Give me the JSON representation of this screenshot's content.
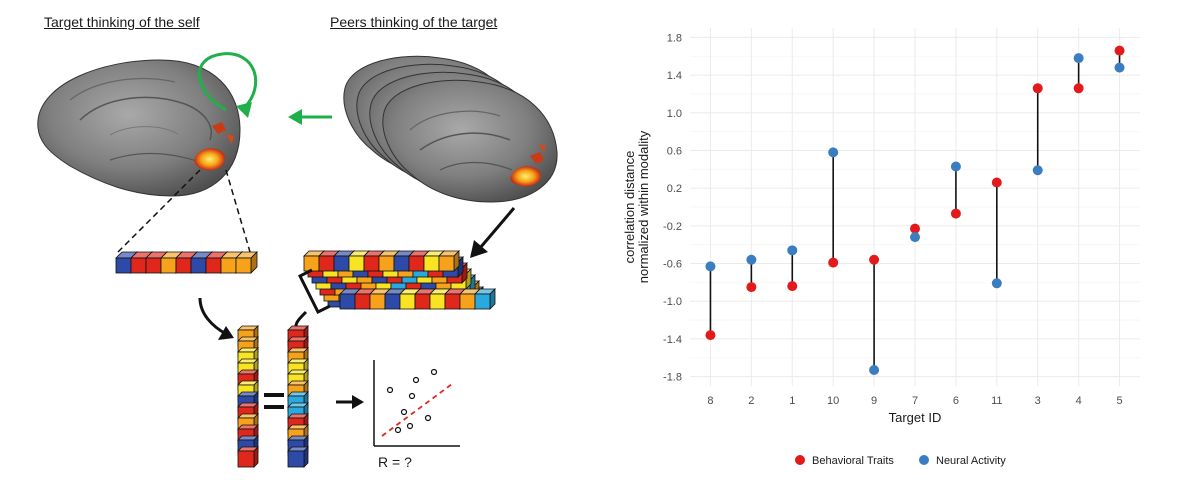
{
  "schematic": {
    "title_left": "Target thinking of the self",
    "title_right": "Peers thinking of the target",
    "r_label": "R = ?",
    "palette": [
      "#e0271b",
      "#f6a21b",
      "#f9e424",
      "#2d4aa8",
      "#2aa9df"
    ]
  },
  "chart_data": {
    "type": "dumbbell",
    "title": "",
    "xlabel": "Target ID",
    "ylabel_lines": [
      "correlation distance",
      "normalized within modality"
    ],
    "ylim": [
      -1.9,
      1.9
    ],
    "yticks": [
      1.8,
      1.4,
      1.0,
      0.6,
      0.2,
      -0.2,
      -0.6,
      -1.0,
      -1.4,
      -1.8
    ],
    "ytick_labels": [
      "1.8",
      "1.4",
      "1.0",
      "0.6",
      "0.2",
      "-0.2",
      "-0.6",
      "-1.0",
      "-1.4",
      "-1.8"
    ],
    "categories": [
      "8",
      "2",
      "1",
      "10",
      "9",
      "7",
      "6",
      "11",
      "3",
      "4",
      "5"
    ],
    "grid": true,
    "legend_position": "bottom",
    "series": [
      {
        "name": "Behavioral Traits",
        "color": "#e31a1c",
        "values": [
          -1.36,
          -0.85,
          -0.84,
          -0.59,
          -0.56,
          -0.23,
          -0.07,
          0.26,
          1.26,
          1.26,
          1.66
        ]
      },
      {
        "name": "Neural Activity",
        "color": "#3a7dc0",
        "values": [
          -0.63,
          -0.56,
          -0.46,
          0.58,
          -1.73,
          -0.32,
          0.43,
          -0.81,
          0.39,
          1.58,
          1.48
        ]
      }
    ]
  }
}
